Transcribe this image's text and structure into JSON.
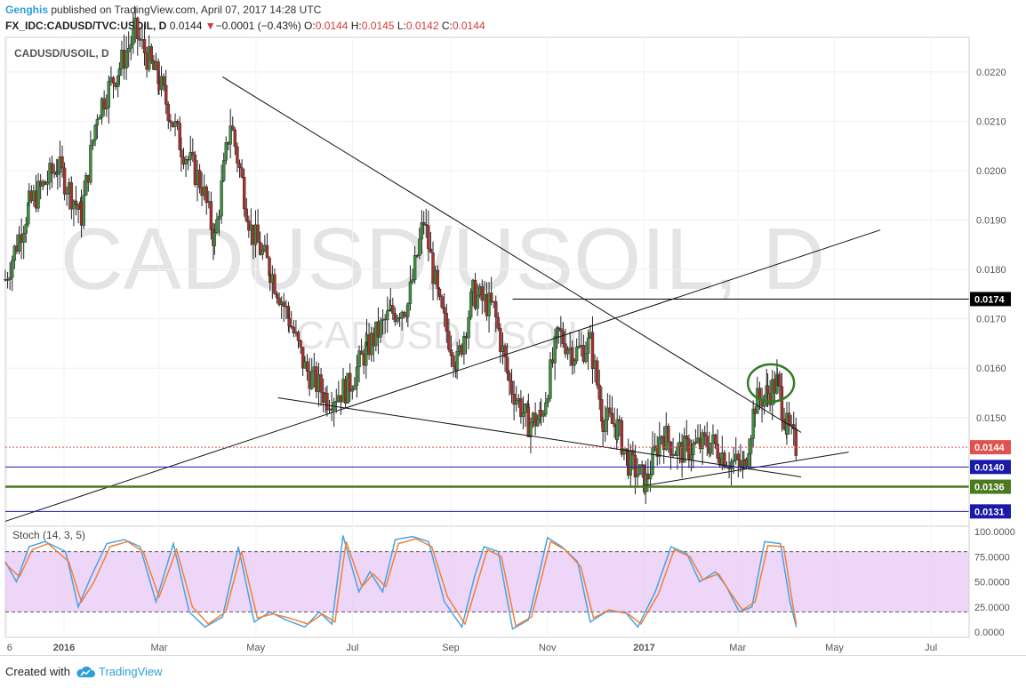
{
  "header": {
    "author": "Genghis",
    "published_text": "published on TradingView.com, April 07, 2017 14:28 UTC",
    "symbol": "FX_IDC:CADUSD/TVC:USOIL, D",
    "last": "0.0144",
    "change_arrow": "▼",
    "change": "−0.0001 (−0.43%)",
    "o_label": "O:",
    "o": "0.0144",
    "h_label": "H:",
    "h": "0.0145",
    "l_label": "L:",
    "l": "0.0142",
    "c_label": "C:",
    "c": "0.0144"
  },
  "footer": {
    "created_with": "Created with",
    "brand": "TradingView"
  },
  "colors": {
    "up": "#3d8f3d",
    "down": "#a8302f",
    "stoch_k": "#4aa3df",
    "stoch_d": "#f0803c",
    "stoch_band": "#e8c8f6",
    "level_blue": "#1a1aa8",
    "level_green": "#4a7a20",
    "last_price": "#e0524f"
  },
  "chart_data": [
    {
      "type": "candlestick",
      "title": "CADUSD/USOIL, D",
      "watermark": "CADUSD/USOIL, D",
      "watermark_small": "CADUSD/USOIL",
      "y_ticks": [
        "0.0220",
        "0.0210",
        "0.0200",
        "0.0190",
        "0.0180",
        "0.0170",
        "0.0160",
        "0.0150"
      ],
      "ylim": [
        0.0128,
        0.0227
      ],
      "x_ticks": [
        "6",
        "2016",
        "Mar",
        "May",
        "Jul",
        "Sep",
        "Nov",
        "2017",
        "Mar",
        "May",
        "Jul"
      ],
      "x_range": [
        "2015-11-25",
        "2017-07-25"
      ],
      "close_series": [
        [
          "2015-11-25",
          0.0178
        ],
        [
          "2015-12-10",
          0.0193
        ],
        [
          "2015-12-28",
          0.0201
        ],
        [
          "2016-01-12",
          0.0191
        ],
        [
          "2016-01-22",
          0.0212
        ],
        [
          "2016-02-05",
          0.0221
        ],
        [
          "2016-02-15",
          0.0228
        ],
        [
          "2016-03-01",
          0.0218
        ],
        [
          "2016-03-15",
          0.0205
        ],
        [
          "2016-03-28",
          0.0197
        ],
        [
          "2016-04-05",
          0.0186
        ],
        [
          "2016-04-15",
          0.021
        ],
        [
          "2016-04-28",
          0.0188
        ],
        [
          "2016-05-10",
          0.018
        ],
        [
          "2016-05-22",
          0.017
        ],
        [
          "2016-06-01",
          0.016
        ],
        [
          "2016-06-15",
          0.0154
        ],
        [
          "2016-06-28",
          0.0156
        ],
        [
          "2016-07-10",
          0.0164
        ],
        [
          "2016-07-25",
          0.0171
        ],
        [
          "2016-08-05",
          0.0173
        ],
        [
          "2016-08-15",
          0.019
        ],
        [
          "2016-08-25",
          0.0172
        ],
        [
          "2016-09-05",
          0.0161
        ],
        [
          "2016-09-15",
          0.0175
        ],
        [
          "2016-09-28",
          0.0172
        ],
        [
          "2016-10-08",
          0.0157
        ],
        [
          "2016-10-20",
          0.0149
        ],
        [
          "2016-10-28",
          0.015
        ],
        [
          "2016-11-08",
          0.0167
        ],
        [
          "2016-11-18",
          0.0163
        ],
        [
          "2016-11-28",
          0.0165
        ],
        [
          "2016-12-06",
          0.015
        ],
        [
          "2016-12-15",
          0.0148
        ],
        [
          "2016-12-22",
          0.0141
        ],
        [
          "2017-01-02",
          0.0137
        ],
        [
          "2017-01-12",
          0.0147
        ],
        [
          "2017-01-22",
          0.0143
        ],
        [
          "2017-02-01",
          0.0144
        ],
        [
          "2017-02-12",
          0.0145
        ],
        [
          "2017-02-25",
          0.0141
        ],
        [
          "2017-03-05",
          0.014
        ],
        [
          "2017-03-12",
          0.0153
        ],
        [
          "2017-03-20",
          0.0155
        ],
        [
          "2017-03-26",
          0.0157
        ],
        [
          "2017-04-01",
          0.0148
        ],
        [
          "2017-04-07",
          0.0144
        ]
      ],
      "horizontal_levels": [
        {
          "label": "0.0174",
          "value": 0.0174,
          "color": "#000000",
          "from": "2016-10-10"
        },
        {
          "label": "0.0144",
          "value": 0.0144,
          "color": "#e0524f",
          "style": "dotted"
        },
        {
          "label": "0.0140",
          "value": 0.014,
          "color": "#1a1aa8"
        },
        {
          "label": "0.0136",
          "value": 0.0136,
          "color": "#4a7a20"
        },
        {
          "label": "0.0131",
          "value": 0.0131,
          "color": "#1a1aa8"
        }
      ],
      "trendlines": [
        {
          "from": [
            "2016-04-10",
            0.0219
          ],
          "to": [
            "2017-04-10",
            0.0147
          ]
        },
        {
          "from": [
            "2015-11-25",
            0.0129
          ],
          "to": [
            "2017-05-30",
            0.0188
          ]
        },
        {
          "from": [
            "2016-05-15",
            0.0154
          ],
          "to": [
            "2017-04-10",
            0.0138
          ]
        },
        {
          "from": [
            "2016-12-28",
            0.0136
          ],
          "to": [
            "2017-05-10",
            0.0143
          ]
        }
      ],
      "annotation": {
        "shape": "circle",
        "color": "#2e7d1f",
        "center": [
          "2017-03-22",
          0.0157
        ]
      }
    },
    {
      "type": "line",
      "title": "Stoch (14, 3, 5)",
      "y_ticks": [
        "100.0000",
        "75.0000",
        "50.0000",
        "25.0000",
        "0.0000"
      ],
      "ylim": [
        0,
        100
      ],
      "band": [
        20,
        80
      ],
      "series": [
        {
          "name": "%K",
          "values": [
            [
              "2015-11-25",
              70
            ],
            [
              "2015-12-02",
              50
            ],
            [
              "2015-12-10",
              85
            ],
            [
              "2015-12-20",
              90
            ],
            [
              "2016-01-02",
              80
            ],
            [
              "2016-01-10",
              25
            ],
            [
              "2016-01-18",
              55
            ],
            [
              "2016-01-28",
              88
            ],
            [
              "2016-02-08",
              92
            ],
            [
              "2016-02-18",
              85
            ],
            [
              "2016-02-28",
              30
            ],
            [
              "2016-03-10",
              88
            ],
            [
              "2016-03-20",
              20
            ],
            [
              "2016-03-30",
              5
            ],
            [
              "2016-04-10",
              15
            ],
            [
              "2016-04-20",
              85
            ],
            [
              "2016-04-30",
              10
            ],
            [
              "2016-05-10",
              20
            ],
            [
              "2016-05-20",
              12
            ],
            [
              "2016-06-01",
              5
            ],
            [
              "2016-06-10",
              20
            ],
            [
              "2016-06-18",
              8
            ],
            [
              "2016-06-25",
              96
            ],
            [
              "2016-07-05",
              40
            ],
            [
              "2016-07-12",
              60
            ],
            [
              "2016-07-20",
              40
            ],
            [
              "2016-07-28",
              92
            ],
            [
              "2016-08-08",
              95
            ],
            [
              "2016-08-18",
              90
            ],
            [
              "2016-08-28",
              30
            ],
            [
              "2016-09-08",
              5
            ],
            [
              "2016-09-16",
              55
            ],
            [
              "2016-09-22",
              85
            ],
            [
              "2016-10-01",
              80
            ],
            [
              "2016-10-10",
              3
            ],
            [
              "2016-10-20",
              12
            ],
            [
              "2016-11-01",
              94
            ],
            [
              "2016-11-10",
              85
            ],
            [
              "2016-11-20",
              70
            ],
            [
              "2016-11-28",
              10
            ],
            [
              "2016-12-08",
              20
            ],
            [
              "2016-12-20",
              20
            ],
            [
              "2016-12-28",
              5
            ],
            [
              "2017-01-08",
              40
            ],
            [
              "2017-01-18",
              85
            ],
            [
              "2017-01-28",
              78
            ],
            [
              "2017-02-05",
              50
            ],
            [
              "2017-02-15",
              60
            ],
            [
              "2017-02-22",
              45
            ],
            [
              "2017-03-02",
              20
            ],
            [
              "2017-03-10",
              25
            ],
            [
              "2017-03-18",
              90
            ],
            [
              "2017-03-28",
              88
            ],
            [
              "2017-04-03",
              30
            ],
            [
              "2017-04-07",
              5
            ]
          ]
        },
        {
          "name": "%D",
          "values": [
            [
              "2015-11-25",
              68
            ],
            [
              "2015-12-04",
              55
            ],
            [
              "2015-12-12",
              82
            ],
            [
              "2015-12-22",
              88
            ],
            [
              "2016-01-04",
              70
            ],
            [
              "2016-01-12",
              30
            ],
            [
              "2016-01-20",
              50
            ],
            [
              "2016-01-30",
              85
            ],
            [
              "2016-02-10",
              90
            ],
            [
              "2016-02-20",
              80
            ],
            [
              "2016-03-01",
              35
            ],
            [
              "2016-03-12",
              82
            ],
            [
              "2016-03-22",
              25
            ],
            [
              "2016-04-01",
              8
            ],
            [
              "2016-04-12",
              20
            ],
            [
              "2016-04-22",
              80
            ],
            [
              "2016-05-02",
              14
            ],
            [
              "2016-05-12",
              18
            ],
            [
              "2016-05-22",
              14
            ],
            [
              "2016-06-03",
              8
            ],
            [
              "2016-06-12",
              18
            ],
            [
              "2016-06-20",
              10
            ],
            [
              "2016-06-27",
              90
            ],
            [
              "2016-07-07",
              45
            ],
            [
              "2016-07-14",
              58
            ],
            [
              "2016-07-22",
              45
            ],
            [
              "2016-07-30",
              88
            ],
            [
              "2016-08-10",
              93
            ],
            [
              "2016-08-20",
              85
            ],
            [
              "2016-08-30",
              35
            ],
            [
              "2016-09-10",
              8
            ],
            [
              "2016-09-18",
              50
            ],
            [
              "2016-09-24",
              82
            ],
            [
              "2016-10-03",
              75
            ],
            [
              "2016-10-12",
              6
            ],
            [
              "2016-10-22",
              15
            ],
            [
              "2016-11-03",
              90
            ],
            [
              "2016-11-12",
              82
            ],
            [
              "2016-11-22",
              65
            ],
            [
              "2016-11-30",
              14
            ],
            [
              "2016-12-10",
              22
            ],
            [
              "2016-12-22",
              18
            ],
            [
              "2016-12-30",
              8
            ],
            [
              "2017-01-10",
              38
            ],
            [
              "2017-01-20",
              82
            ],
            [
              "2017-01-30",
              75
            ],
            [
              "2017-02-07",
              52
            ],
            [
              "2017-02-17",
              58
            ],
            [
              "2017-02-24",
              40
            ],
            [
              "2017-03-04",
              22
            ],
            [
              "2017-03-12",
              30
            ],
            [
              "2017-03-20",
              86
            ],
            [
              "2017-03-30",
              85
            ],
            [
              "2017-04-05",
              25
            ],
            [
              "2017-04-07",
              8
            ]
          ]
        }
      ]
    }
  ]
}
